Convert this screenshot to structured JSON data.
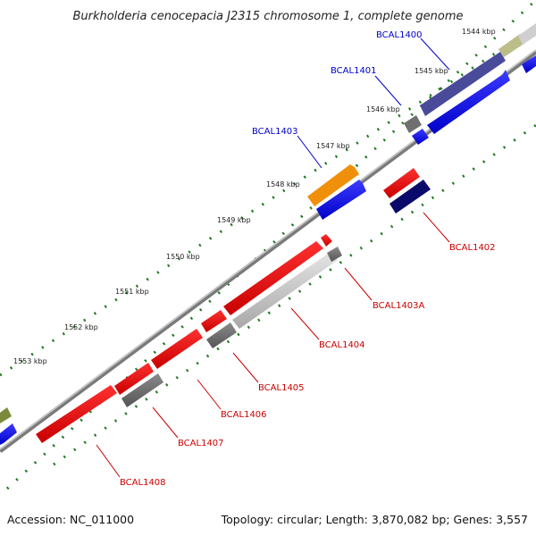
{
  "title": "Burkholderia cenocepacia J2315 chromosome 1, complete genome",
  "footer": {
    "accession": "Accession: NC_011000",
    "summary": "Topology: circular; Length: 3,870,082 bp; Genes: 3,557"
  },
  "colors": {
    "forward_label": "#0000cc",
    "reverse_label": "#cc0000",
    "backbone": "#9a9a9a",
    "tick_dots": "#1e7a1e"
  },
  "ticks": [
    "1544 kbp",
    "1545 kbp",
    "1546 kbp",
    "1547 kbp",
    "1548 kbp",
    "1549 kbp",
    "1550 kbp",
    "1551 kbp",
    "1552 kbp",
    "1553 kbp"
  ],
  "genes": {
    "forward": [
      "BCAL1400",
      "BCAL1401",
      "BCAL1403"
    ],
    "reverse": [
      "BCAL1402",
      "BCAL1403A",
      "BCAL1404",
      "BCAL1405",
      "BCAL1406",
      "BCAL1407",
      "BCAL1408"
    ]
  }
}
